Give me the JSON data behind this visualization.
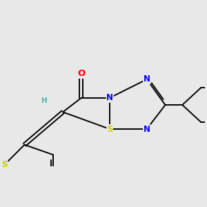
{
  "bg_color": "#e8e8e8",
  "atom_colors": {
    "O": "#ff0000",
    "N": "#0000ff",
    "S": "#cccc00",
    "C": "#000000",
    "H": "#5aacac"
  },
  "line_color": "#000000",
  "line_width": 1.4,
  "font_size_atom": 8.5,
  "xlim": [
    -2.5,
    4.5
  ],
  "ylim": [
    -2.2,
    2.2
  ]
}
